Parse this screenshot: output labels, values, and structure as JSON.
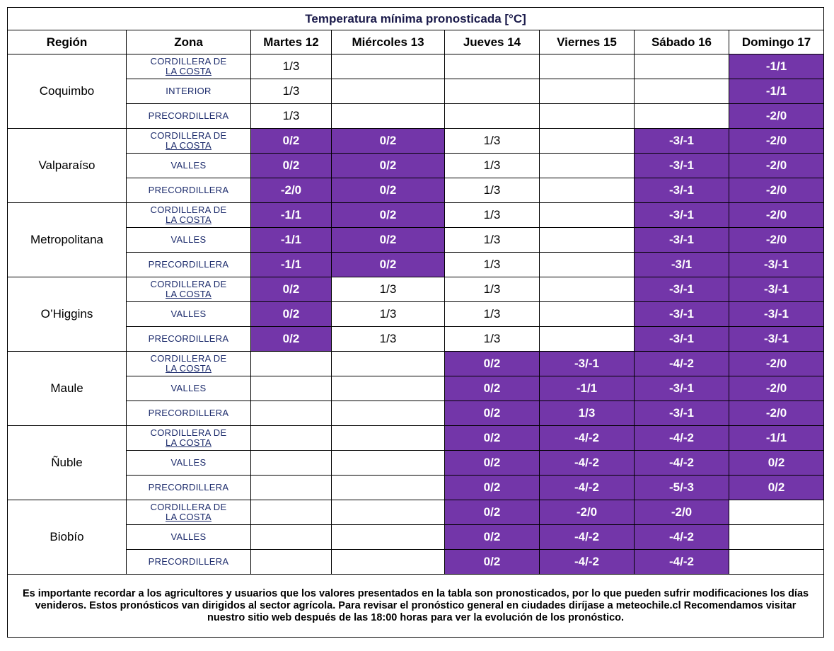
{
  "title": "Temperatura mínima pronosticada [°C]",
  "headers": [
    "Región",
    "Zona",
    "Martes 12",
    "Miércoles 13",
    "Jueves 14",
    "Viernes 15",
    "Sábado 16",
    "Domingo 17"
  ],
  "highlight_color": "#7336a9",
  "regions": [
    {
      "name": "Coquimbo",
      "rows": [
        {
          "zona": [
            "CORDILLERA DE",
            "LA COSTA"
          ],
          "values": [
            "1/3",
            "",
            "",
            "",
            "",
            "-1/1"
          ],
          "highlight": [
            false,
            false,
            false,
            false,
            false,
            true
          ]
        },
        {
          "zona": [
            "INTERIOR"
          ],
          "values": [
            "1/3",
            "",
            "",
            "",
            "",
            "-1/1"
          ],
          "highlight": [
            false,
            false,
            false,
            false,
            false,
            true
          ]
        },
        {
          "zona": [
            "PRECORDILLERA"
          ],
          "values": [
            "1/3",
            "",
            "",
            "",
            "",
            "-2/0"
          ],
          "highlight": [
            false,
            false,
            false,
            false,
            false,
            true
          ]
        }
      ]
    },
    {
      "name": "Valparaíso",
      "rows": [
        {
          "zona": [
            "CORDILLERA DE",
            "LA COSTA"
          ],
          "values": [
            "0/2",
            "0/2",
            "1/3",
            "",
            "-3/-1",
            "-2/0"
          ],
          "highlight": [
            true,
            true,
            false,
            false,
            true,
            true
          ]
        },
        {
          "zona": [
            "VALLES"
          ],
          "values": [
            "0/2",
            "0/2",
            "1/3",
            "",
            "-3/-1",
            "-2/0"
          ],
          "highlight": [
            true,
            true,
            false,
            false,
            true,
            true
          ]
        },
        {
          "zona": [
            "PRECORDILLERA"
          ],
          "values": [
            "-2/0",
            "0/2",
            "1/3",
            "",
            "-3/-1",
            "-2/0"
          ],
          "highlight": [
            true,
            true,
            false,
            false,
            true,
            true
          ]
        }
      ]
    },
    {
      "name": "Metropolitana",
      "rows": [
        {
          "zona": [
            "CORDILLERA DE",
            "LA COSTA"
          ],
          "values": [
            "-1/1",
            "0/2",
            "1/3",
            "",
            "-3/-1",
            "-2/0"
          ],
          "highlight": [
            true,
            true,
            false,
            false,
            true,
            true
          ]
        },
        {
          "zona": [
            "VALLES"
          ],
          "values": [
            "-1/1",
            "0/2",
            "1/3",
            "",
            "-3/-1",
            "-2/0"
          ],
          "highlight": [
            true,
            true,
            false,
            false,
            true,
            true
          ]
        },
        {
          "zona": [
            "PRECORDILLERA"
          ],
          "values": [
            "-1/1",
            "0/2",
            "1/3",
            "",
            "-3/1",
            "-3/-1"
          ],
          "highlight": [
            true,
            true,
            false,
            false,
            true,
            true
          ]
        }
      ]
    },
    {
      "name": "O’Higgins",
      "rows": [
        {
          "zona": [
            "CORDILLERA DE",
            "LA COSTA"
          ],
          "values": [
            "0/2",
            "1/3",
            "1/3",
            "",
            "-3/-1",
            "-3/-1"
          ],
          "highlight": [
            true,
            false,
            false,
            false,
            true,
            true
          ]
        },
        {
          "zona": [
            "VALLES"
          ],
          "values": [
            "0/2",
            "1/3",
            "1/3",
            "",
            "-3/-1",
            "-3/-1"
          ],
          "highlight": [
            true,
            false,
            false,
            false,
            true,
            true
          ]
        },
        {
          "zona": [
            "PRECORDILLERA"
          ],
          "values": [
            "0/2",
            "1/3",
            "1/3",
            "",
            "-3/-1",
            "-3/-1"
          ],
          "highlight": [
            true,
            false,
            false,
            false,
            true,
            true
          ]
        }
      ]
    },
    {
      "name": "Maule",
      "rows": [
        {
          "zona": [
            "CORDILLERA DE",
            "LA COSTA"
          ],
          "values": [
            "",
            "",
            "0/2",
            "-3/-1",
            "-4/-2",
            "-2/0"
          ],
          "highlight": [
            false,
            false,
            true,
            true,
            true,
            true
          ]
        },
        {
          "zona": [
            "VALLES"
          ],
          "values": [
            "",
            "",
            "0/2",
            "-1/1",
            "-3/-1",
            "-2/0"
          ],
          "highlight": [
            false,
            false,
            true,
            true,
            true,
            true
          ]
        },
        {
          "zona": [
            "PRECORDILLERA"
          ],
          "values": [
            "",
            "",
            "0/2",
            "1/3",
            "-3/-1",
            "-2/0"
          ],
          "highlight": [
            false,
            false,
            true,
            true,
            true,
            true
          ]
        }
      ]
    },
    {
      "name": "Ñuble",
      "rows": [
        {
          "zona": [
            "CORDILLERA DE",
            "LA COSTA"
          ],
          "values": [
            "",
            "",
            "0/2",
            "-4/-2",
            "-4/-2",
            "-1/1"
          ],
          "highlight": [
            false,
            false,
            true,
            true,
            true,
            true
          ]
        },
        {
          "zona": [
            "VALLES"
          ],
          "values": [
            "",
            "",
            "0/2",
            "-4/-2",
            "-4/-2",
            "0/2"
          ],
          "highlight": [
            false,
            false,
            true,
            true,
            true,
            true
          ]
        },
        {
          "zona": [
            "PRECORDILLERA"
          ],
          "values": [
            "",
            "",
            "0/2",
            "-4/-2",
            "-5/-3",
            "0/2"
          ],
          "highlight": [
            false,
            false,
            true,
            true,
            true,
            true
          ]
        }
      ]
    },
    {
      "name": "Biobío",
      "rows": [
        {
          "zona": [
            "CORDILLERA DE",
            "LA COSTA"
          ],
          "values": [
            "",
            "",
            "0/2",
            "-2/0",
            "-2/0",
            ""
          ],
          "highlight": [
            false,
            false,
            true,
            true,
            true,
            false
          ]
        },
        {
          "zona": [
            "VALLES"
          ],
          "values": [
            "",
            "",
            "0/2",
            "-4/-2",
            "-4/-2",
            ""
          ],
          "highlight": [
            false,
            false,
            true,
            true,
            true,
            false
          ]
        },
        {
          "zona": [
            "PRECORDILLERA"
          ],
          "values": [
            "",
            "",
            "0/2",
            "-4/-2",
            "-4/-2",
            ""
          ],
          "highlight": [
            false,
            false,
            true,
            true,
            true,
            false
          ]
        }
      ]
    }
  ],
  "footer_note": "Es importante recordar a los agricultores y usuarios que los valores presentados en la tabla son pronosticados, por lo que pueden sufrir modificaciones los días venideros. Estos pronósticos van dirigidos al sector agrícola. Para revisar el pronóstico general en ciudades diríjase a meteochile.cl Recomendamos visitar nuestro sitio web después de las 18:00 horas para ver la evolución de los pronóstico."
}
